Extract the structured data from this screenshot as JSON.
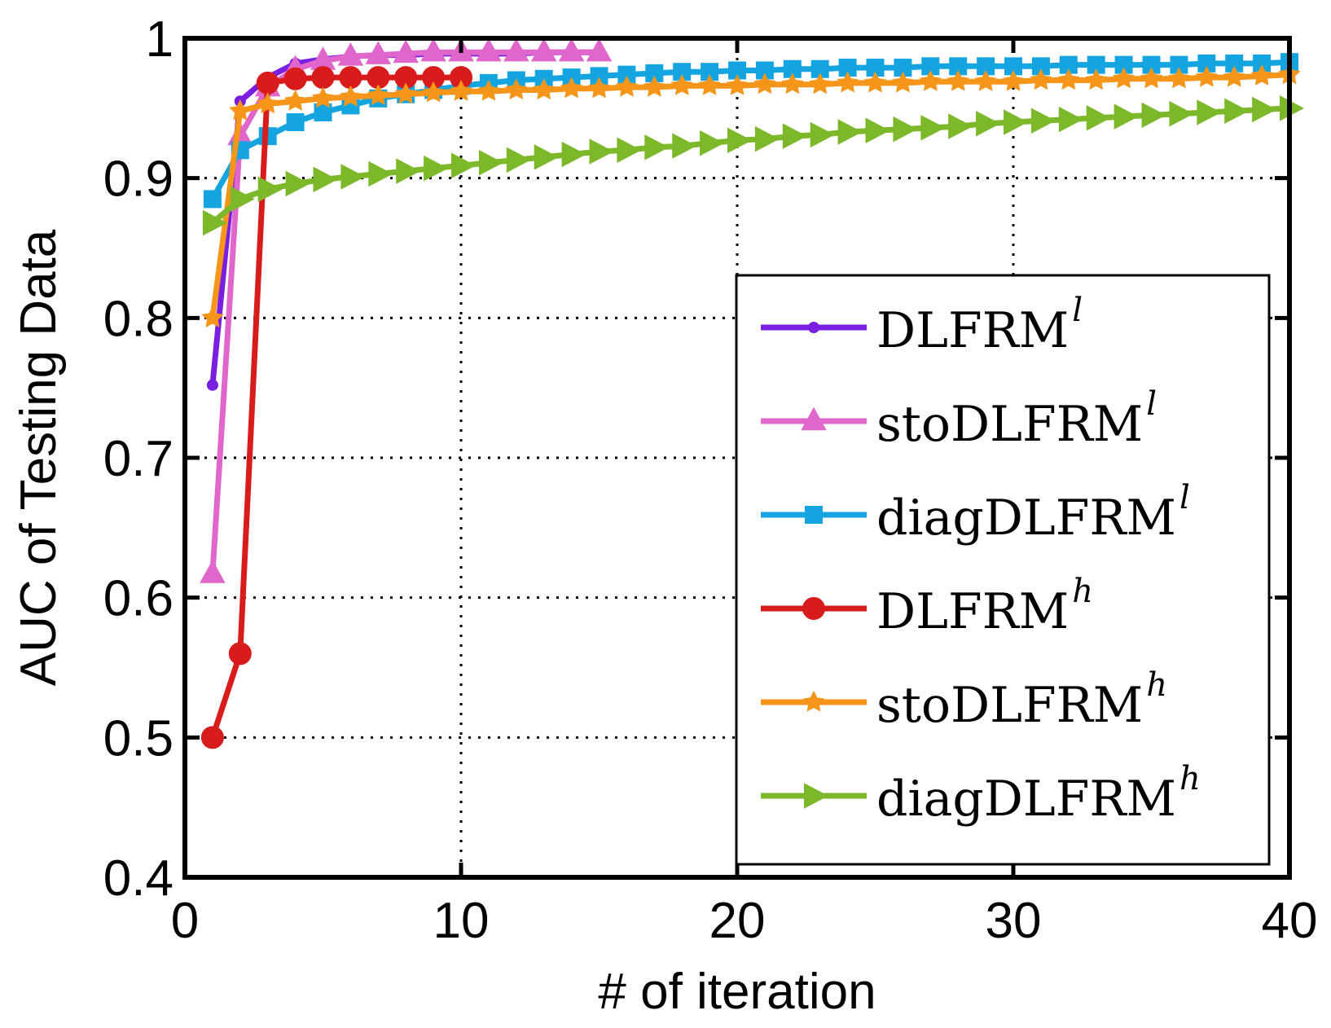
{
  "chart_data": {
    "type": "line",
    "title": "",
    "xlabel": "# of iteration",
    "ylabel": "AUC of Testing Data",
    "xlim": [
      0,
      40
    ],
    "ylim": [
      0.4,
      1
    ],
    "xticks": [
      0,
      10,
      20,
      30,
      40
    ],
    "xtick_labels": [
      "0",
      "10",
      "20",
      "30",
      "40"
    ],
    "yticks": [
      0.4,
      0.5,
      0.6,
      0.7,
      0.8,
      0.9,
      1
    ],
    "ytick_labels": [
      "0.4",
      "0.5",
      "0.6",
      "0.7",
      "0.8",
      "0.9",
      "1"
    ],
    "grid": true,
    "legend_position": "lower-right",
    "series": [
      {
        "name": "DLFRM",
        "sup": "l",
        "color": "#7a1fe0",
        "marker": "dot",
        "x": [
          1,
          2,
          3,
          4,
          5,
          6,
          7,
          8,
          9,
          10,
          11,
          12,
          13,
          14,
          15
        ],
        "values": [
          0.752,
          0.955,
          0.972,
          0.982,
          0.985,
          0.987,
          0.988,
          0.988,
          0.989,
          0.989,
          0.989,
          0.989,
          0.99,
          0.99,
          0.99
        ]
      },
      {
        "name": "stoDLFRM",
        "sup": "l",
        "color": "#e066cc",
        "marker": "triangle-up",
        "x": [
          1,
          2,
          3,
          4,
          5,
          6,
          7,
          8,
          9,
          10,
          11,
          12,
          13,
          14,
          15
        ],
        "values": [
          0.617,
          0.93,
          0.965,
          0.978,
          0.984,
          0.987,
          0.988,
          0.989,
          0.99,
          0.99,
          0.99,
          0.99,
          0.99,
          0.99,
          0.99
        ]
      },
      {
        "name": "diagDLFRM",
        "sup": "l",
        "color": "#14a5e0",
        "marker": "square",
        "x": [
          1,
          2,
          3,
          4,
          5,
          6,
          7,
          8,
          9,
          10,
          11,
          12,
          13,
          14,
          15,
          16,
          17,
          18,
          19,
          20,
          21,
          22,
          23,
          24,
          25,
          26,
          27,
          28,
          29,
          30,
          31,
          32,
          33,
          34,
          35,
          36,
          37,
          38,
          39,
          40
        ],
        "values": [
          0.885,
          0.92,
          0.93,
          0.94,
          0.947,
          0.952,
          0.957,
          0.96,
          0.963,
          0.966,
          0.968,
          0.97,
          0.971,
          0.972,
          0.973,
          0.974,
          0.975,
          0.976,
          0.976,
          0.977,
          0.977,
          0.978,
          0.978,
          0.979,
          0.979,
          0.979,
          0.98,
          0.98,
          0.98,
          0.98,
          0.98,
          0.981,
          0.981,
          0.981,
          0.981,
          0.981,
          0.982,
          0.982,
          0.982,
          0.983
        ]
      },
      {
        "name": "DLFRM",
        "sup": "h",
        "color": "#d81b1b",
        "marker": "circle",
        "x": [
          1,
          2,
          3,
          4,
          5,
          6,
          7,
          8,
          9,
          10
        ],
        "values": [
          0.5,
          0.56,
          0.968,
          0.971,
          0.972,
          0.972,
          0.972,
          0.972,
          0.972,
          0.972
        ]
      },
      {
        "name": "stoDLFRM",
        "sup": "h",
        "color": "#f5961a",
        "marker": "star",
        "x": [
          1,
          2,
          3,
          4,
          5,
          6,
          7,
          8,
          9,
          10,
          11,
          12,
          13,
          14,
          15,
          16,
          17,
          18,
          19,
          20,
          21,
          22,
          23,
          24,
          25,
          26,
          27,
          28,
          29,
          30,
          31,
          32,
          33,
          34,
          35,
          36,
          37,
          38,
          39,
          40
        ],
        "values": [
          0.8,
          0.948,
          0.953,
          0.955,
          0.957,
          0.958,
          0.959,
          0.96,
          0.961,
          0.962,
          0.962,
          0.963,
          0.963,
          0.964,
          0.964,
          0.965,
          0.965,
          0.966,
          0.966,
          0.966,
          0.967,
          0.967,
          0.967,
          0.968,
          0.968,
          0.968,
          0.969,
          0.969,
          0.969,
          0.969,
          0.97,
          0.97,
          0.97,
          0.971,
          0.971,
          0.971,
          0.972,
          0.972,
          0.973,
          0.974
        ]
      },
      {
        "name": "diagDLFRM",
        "sup": "h",
        "color": "#7db82a",
        "marker": "triangle-right",
        "x": [
          1,
          2,
          3,
          4,
          5,
          6,
          7,
          8,
          9,
          10,
          11,
          12,
          13,
          14,
          15,
          16,
          17,
          18,
          19,
          20,
          21,
          22,
          23,
          24,
          25,
          26,
          27,
          28,
          29,
          30,
          31,
          32,
          33,
          34,
          35,
          36,
          37,
          38,
          39,
          40
        ],
        "values": [
          0.868,
          0.885,
          0.892,
          0.896,
          0.899,
          0.901,
          0.903,
          0.905,
          0.907,
          0.909,
          0.911,
          0.913,
          0.915,
          0.917,
          0.919,
          0.92,
          0.922,
          0.923,
          0.925,
          0.927,
          0.928,
          0.93,
          0.931,
          0.933,
          0.934,
          0.935,
          0.936,
          0.937,
          0.939,
          0.94,
          0.941,
          0.942,
          0.943,
          0.944,
          0.945,
          0.946,
          0.947,
          0.948,
          0.949,
          0.95
        ]
      }
    ]
  }
}
